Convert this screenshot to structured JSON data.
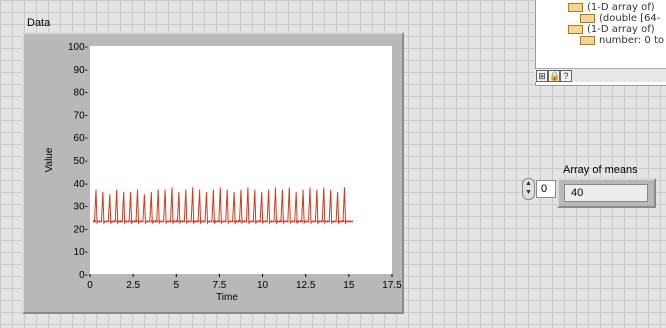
{
  "graph": {
    "title": "Data"
  },
  "chart_data": {
    "type": "line",
    "xlabel": "Time",
    "ylabel": "Value",
    "xlim": [
      0,
      17.5
    ],
    "ylim": [
      0,
      100
    ],
    "x_ticks": [
      0,
      2.5,
      5,
      7.5,
      10,
      12.5,
      15,
      17.5
    ],
    "x_tick_labels": [
      "0",
      "2.5",
      "5",
      "7.5",
      "10",
      "12.5",
      "15",
      "17.5"
    ],
    "y_ticks": [
      0,
      10,
      20,
      30,
      40,
      50,
      60,
      70,
      80,
      90,
      100
    ],
    "y_tick_labels": [
      "0-",
      "10-",
      "20-",
      "30-",
      "40-",
      "50-",
      "60-",
      "70-",
      "80-",
      "90-",
      "100-"
    ],
    "grid": false,
    "series": [
      {
        "color": "#d23a1f",
        "baseline": 23,
        "spike_x": [
          0.35,
          0.75,
          1.15,
          1.55,
          1.95,
          2.35,
          2.75,
          3.15,
          3.55,
          3.95,
          4.35,
          4.75,
          5.15,
          5.55,
          5.95,
          6.35,
          6.75,
          7.15,
          7.55,
          7.95,
          8.35,
          8.75,
          9.15,
          9.55,
          9.95,
          10.35,
          10.75,
          11.15,
          11.55,
          11.95,
          12.35,
          12.75,
          13.15,
          13.55,
          13.95,
          14.35,
          14.75
        ],
        "spike_y": [
          37,
          36,
          35,
          37,
          36,
          36,
          37,
          35,
          36,
          37,
          37,
          38,
          36,
          37,
          38,
          37,
          36,
          37,
          38,
          37,
          36,
          37,
          38,
          37,
          36,
          37,
          38,
          37,
          38,
          36,
          37,
          38,
          37,
          38,
          37,
          36,
          38
        ],
        "x_range": [
          0.2,
          15.2
        ]
      }
    ]
  },
  "context_help": {
    "lines": [
      "(1-D array of)",
      "(double [64-",
      "(1-D array of)",
      "number: 0 to"
    ],
    "toolbar_labels": [
      "⊞",
      "🔒",
      "?"
    ]
  },
  "array_control": {
    "label": "Array of means",
    "index": "0",
    "value": "40"
  }
}
